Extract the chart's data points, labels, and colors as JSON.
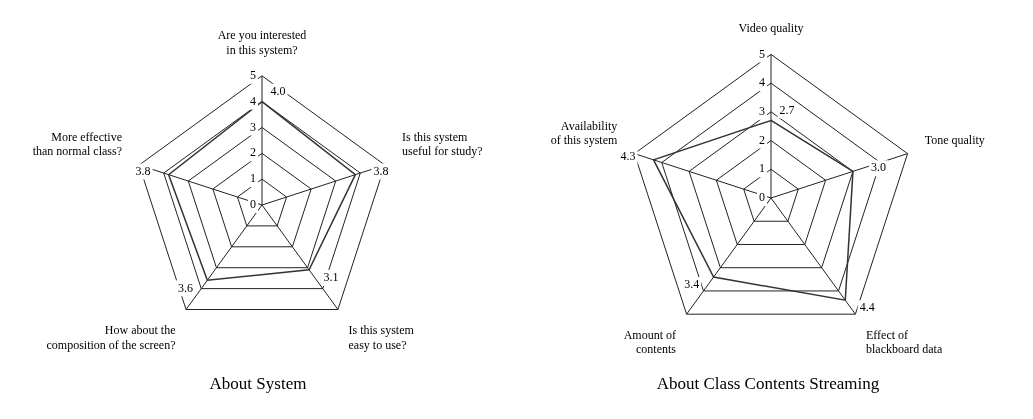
{
  "chart_data": [
    {
      "type": "radar",
      "title": "About System",
      "categories": [
        "Are you interested in this system?",
        "Is this system useful for study?",
        "Is this system easy to use?",
        "How about the composition of the screen?",
        "More effective than normal class?"
      ],
      "series": [
        {
          "color": "#333333",
          "values": [
            4.0,
            3.8,
            3.1,
            3.6,
            3.8
          ],
          "value_labels": [
            "4.0",
            "3.8",
            "3.1",
            "3.6",
            "3.8"
          ]
        }
      ],
      "ylim": [
        0,
        5
      ],
      "yticks": [
        0,
        1,
        2,
        3,
        4,
        5
      ],
      "grid": true,
      "marker": "none"
    },
    {
      "type": "radar",
      "title": "About Class Contents Streaming",
      "categories": [
        "Video quality",
        "Tone quality",
        "Effect of blackboard data",
        "Amount of contents",
        "Availability of this system"
      ],
      "series": [
        {
          "color": "#333333",
          "values": [
            2.7,
            3.0,
            4.4,
            3.4,
            4.3
          ],
          "value_labels": [
            "2.7",
            "3.0",
            "4.4",
            "3.4",
            "4.3"
          ]
        }
      ],
      "ylim": [
        0,
        5
      ],
      "yticks": [
        0,
        1,
        2,
        3,
        4,
        5
      ],
      "grid": true,
      "marker": "none"
    }
  ]
}
